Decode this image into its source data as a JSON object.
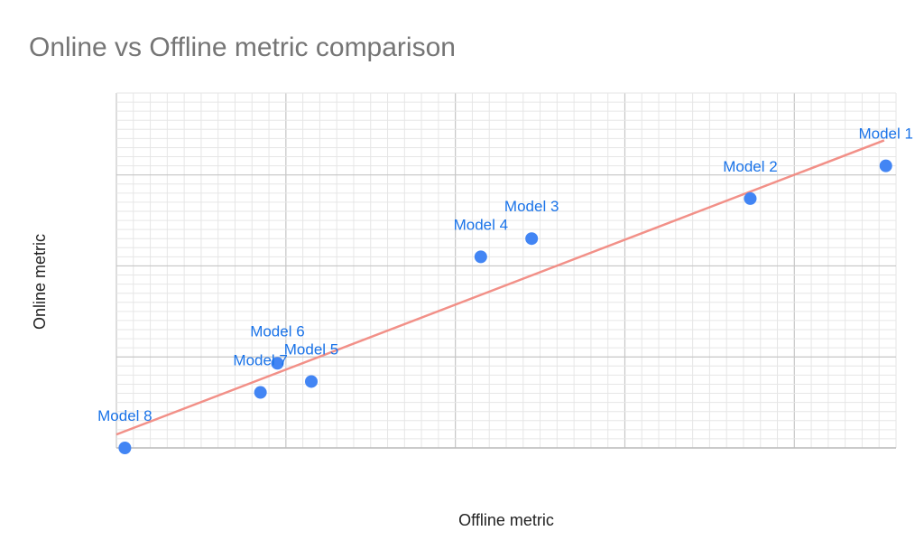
{
  "chart_data": {
    "type": "scatter",
    "title": "Online vs Offline metric comparison",
    "xlabel": "Offline metric",
    "ylabel": "Online metric",
    "xlim": [
      0,
      4.6
    ],
    "ylim": [
      0,
      3.9
    ],
    "x_ticks_labeled": false,
    "y_ticks_labeled": false,
    "grid": true,
    "legend": "none",
    "point_color": "#4285f4",
    "label_color": "#1a73e8",
    "trendline": {
      "type": "linear",
      "color": "#f28b82"
    },
    "points": [
      {
        "label": "Model 1",
        "x": 4.54,
        "y": 3.1
      },
      {
        "label": "Model 2",
        "x": 3.74,
        "y": 2.74
      },
      {
        "label": "Model 3",
        "x": 2.45,
        "y": 2.3
      },
      {
        "label": "Model 4",
        "x": 2.15,
        "y": 2.1
      },
      {
        "label": "Model 5",
        "x": 1.15,
        "y": 0.73
      },
      {
        "label": "Model 6",
        "x": 0.95,
        "y": 0.93
      },
      {
        "label": "Model 7",
        "x": 0.85,
        "y": 0.61
      },
      {
        "label": "Model 8",
        "x": 0.05,
        "y": 0.0
      }
    ]
  }
}
